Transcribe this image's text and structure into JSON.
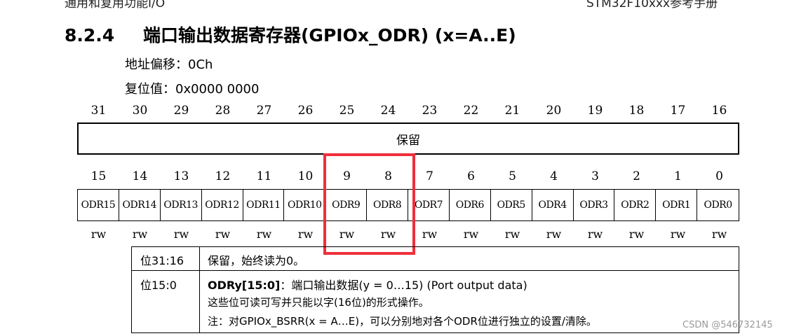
{
  "header": {
    "left_text": "通用和复用功能I/O",
    "right_text": "STM32F10xxx参考手册"
  },
  "section": {
    "number": "8.2.4",
    "title": "端口输出数据寄存器(GPIOx_ODR) (x=A..E)"
  },
  "register": {
    "offset": "地址偏移：0Ch",
    "reset_value": "复位值：0x0000 0000"
  },
  "upper_bits": [
    "31",
    "30",
    "29",
    "28",
    "27",
    "26",
    "25",
    "24",
    "23",
    "22",
    "21",
    "20",
    "19",
    "18",
    "17",
    "16"
  ],
  "reserved_label": "保留",
  "lower_bits": [
    "15",
    "14",
    "13",
    "12",
    "11",
    "10",
    "9",
    "8",
    "7",
    "6",
    "5",
    "4",
    "3",
    "2",
    "1",
    "0"
  ],
  "fields": [
    "ODR15",
    "ODR14",
    "ODR13",
    "ODR12",
    "ODR11",
    "ODR10",
    "ODR9",
    "ODR8",
    "ODR7",
    "ODR6",
    "ODR5",
    "ODR4",
    "ODR3",
    "ODR2",
    "ODR1",
    "ODR0"
  ],
  "access": [
    "rw",
    "rw",
    "rw",
    "rw",
    "rw",
    "rw",
    "rw",
    "rw",
    "rw",
    "rw",
    "rw",
    "rw",
    "rw",
    "rw",
    "rw",
    "rw"
  ],
  "highlight": {
    "color": "#ef2f3b",
    "fields": [
      "ODR9",
      "ODR8"
    ]
  },
  "description": {
    "row1": {
      "bits": "位31:16",
      "text": "保留，始终读为0。"
    },
    "row2": {
      "bits": "位15:0",
      "field_name": "ODRy[15:0]",
      "field_desc": "：端口输出数据(y = 0…15) (Port output data)",
      "line2": "这些位可读可写并只能以字(16位)的形式操作。",
      "line3": "注：对GPIOx_BSRR(x = A…E)，可以分别地对各个ODR位进行独立的设置/清除。"
    }
  },
  "watermark": "CSDN @546732145"
}
